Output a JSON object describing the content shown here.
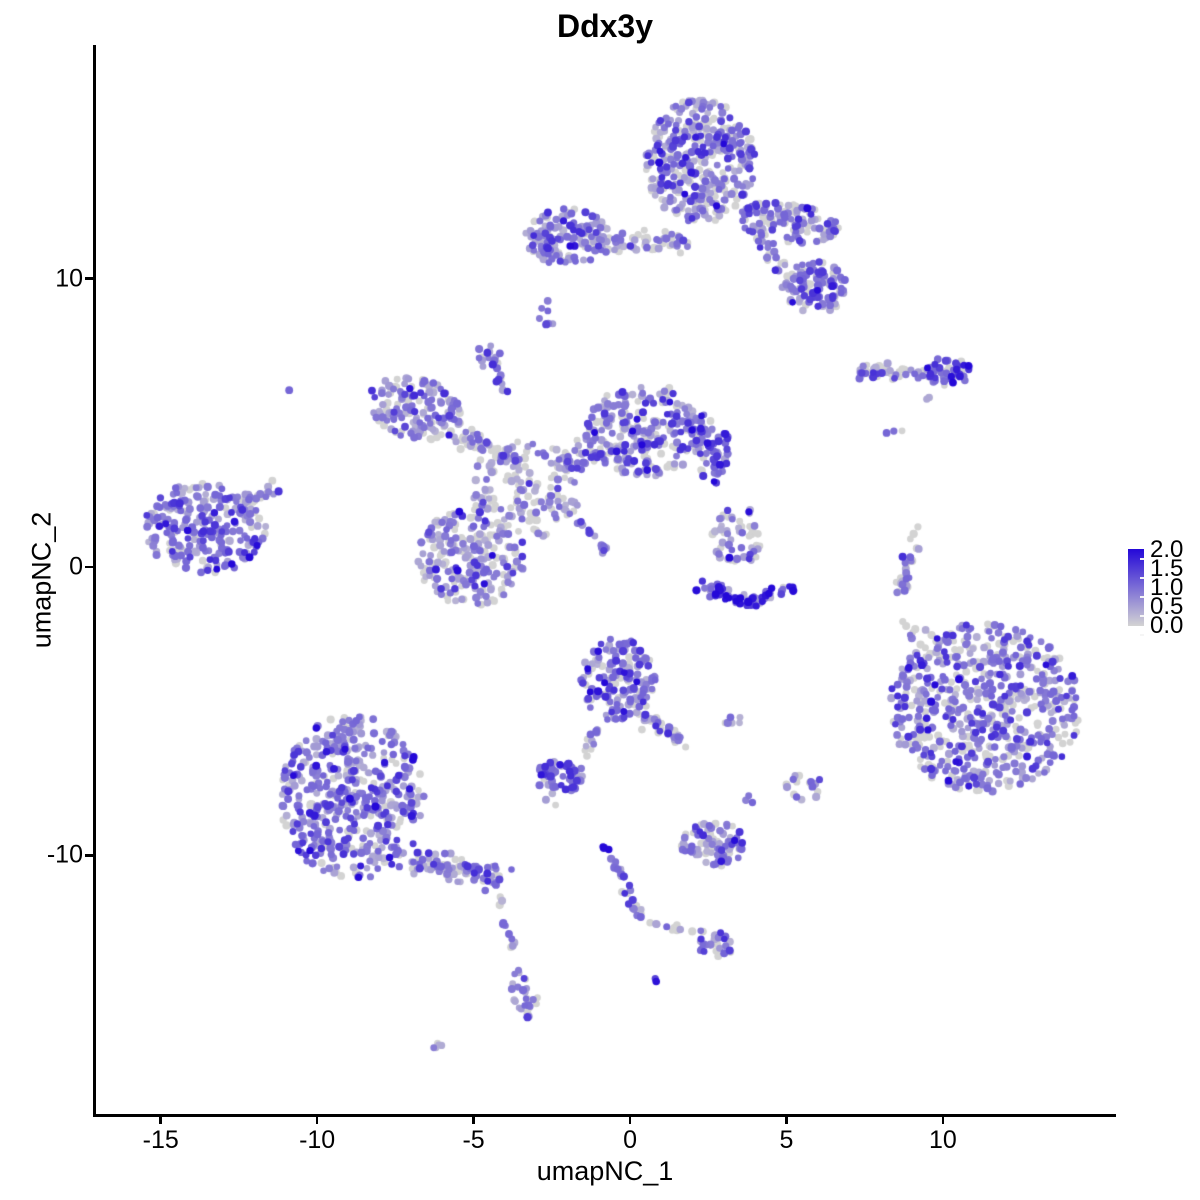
{
  "title": "Ddx3y",
  "chart_data": {
    "type": "scatter",
    "title": "Ddx3y",
    "subtitle": "",
    "xlabel": "umapNC_1",
    "ylabel": "umapNC_2",
    "xlim": [
      -17.1,
      15.5
    ],
    "ylim": [
      -19.0,
      18.1
    ],
    "x_ticks": [
      -15,
      -10,
      -5,
      0,
      5,
      10
    ],
    "y_ticks": [
      10,
      0,
      -10
    ],
    "grid": false,
    "point_radius_px": 3.6,
    "legend": {
      "position": "right",
      "labels": [
        "2.0",
        "1.5",
        "1.0",
        "0.5",
        "0.0"
      ],
      "value_range": [
        0,
        2
      ],
      "color_low": "#d3d3d3",
      "color_high": "#2408d8"
    },
    "value_bins": [
      0,
      0.45,
      0.95,
      1.5,
      1.95
    ],
    "clusters": [
      {
        "name": "top-main",
        "shape": "ellipse",
        "cx": 2.24,
        "cy": 14.08,
        "rx": 1.76,
        "ry": 2.15,
        "rot": 0,
        "n": 400,
        "mix": [
          0.3,
          0.27,
          0.3,
          0.1,
          0.03
        ]
      },
      {
        "name": "top-arm-right",
        "shape": "ellipse",
        "cx": 5.02,
        "cy": 11.94,
        "rx": 1.66,
        "ry": 0.66,
        "rot": -8,
        "n": 120,
        "mix": [
          0.3,
          0.25,
          0.3,
          0.12,
          0.03
        ]
      },
      {
        "name": "top-right-blob",
        "shape": "ellipse",
        "cx": 5.91,
        "cy": 9.69,
        "rx": 1.0,
        "ry": 0.9,
        "rot": 0,
        "n": 100,
        "mix": [
          0.25,
          0.22,
          0.35,
          0.15,
          0.03
        ]
      },
      {
        "name": "top-strand",
        "shape": "strand",
        "x1": 4.15,
        "y1": 11.59,
        "x2": 5.43,
        "y2": 9.31,
        "w": 0.3,
        "n": 30,
        "mix": [
          0.35,
          0.25,
          0.3,
          0.1,
          0
        ]
      },
      {
        "name": "topleft-cluster",
        "shape": "ellipse",
        "cx": -2.01,
        "cy": 11.42,
        "rx": 1.35,
        "ry": 1.0,
        "rot": 0,
        "n": 150,
        "mix": [
          0.2,
          0.25,
          0.38,
          0.14,
          0.03
        ]
      },
      {
        "name": "topleft-band",
        "shape": "strand",
        "x1": -0.73,
        "y1": 11.21,
        "x2": 1.85,
        "y2": 11.25,
        "w": 0.4,
        "n": 55,
        "mix": [
          0.45,
          0.25,
          0.22,
          0.08,
          0
        ]
      },
      {
        "name": "small-two-dot-blob",
        "shape": "ellipse",
        "cx": -2.78,
        "cy": 8.72,
        "rx": 0.28,
        "ry": 0.45,
        "rot": 30,
        "n": 7,
        "mix": [
          0.1,
          0.2,
          0.5,
          0.2,
          0
        ]
      },
      {
        "name": "small-two-dot-single",
        "shape": "ellipse",
        "cx": -2.65,
        "cy": 9.24,
        "rx": 0.06,
        "ry": 0.06,
        "rot": 0,
        "n": 1,
        "mix": [
          0,
          0,
          1,
          0,
          0
        ]
      },
      {
        "name": "small-knob",
        "shape": "ellipse",
        "cx": -4.5,
        "cy": 7.3,
        "rx": 0.42,
        "ry": 0.42,
        "rot": 0,
        "n": 14,
        "mix": [
          0.15,
          0.2,
          0.45,
          0.2,
          0
        ]
      },
      {
        "name": "knob-strand",
        "shape": "strand",
        "x1": -4.28,
        "y1": 6.75,
        "x2": -3.87,
        "y2": 6.02,
        "w": 0.18,
        "n": 10,
        "mix": [
          0.2,
          0.3,
          0.4,
          0.1,
          0
        ]
      },
      {
        "name": "mid-left-arm",
        "shape": "ellipse",
        "cx": -6.87,
        "cy": 5.5,
        "rx": 1.55,
        "ry": 1.05,
        "rot": -18,
        "n": 150,
        "mix": [
          0.33,
          0.28,
          0.29,
          0.09,
          0.01
        ]
      },
      {
        "name": "mid-left-bridge",
        "shape": "strand",
        "x1": -5.5,
        "y1": 4.53,
        "x2": -3.42,
        "y2": 3.63,
        "w": 0.5,
        "n": 60,
        "mix": [
          0.45,
          0.27,
          0.22,
          0.06,
          0
        ]
      },
      {
        "name": "mid-central",
        "shape": "ellipse",
        "cx": -3.35,
        "cy": 2.66,
        "rx": 1.75,
        "ry": 1.7,
        "rot": 0,
        "n": 120,
        "mix": [
          0.45,
          0.28,
          0.22,
          0.05,
          0
        ]
      },
      {
        "name": "mid-right-lobe",
        "shape": "ellipse",
        "cx": 0.48,
        "cy": 4.74,
        "rx": 2.0,
        "ry": 1.6,
        "rot": 0,
        "n": 250,
        "mix": [
          0.28,
          0.27,
          0.31,
          0.11,
          0.03
        ]
      },
      {
        "name": "mid-right-edge",
        "shape": "ellipse",
        "cx": 2.65,
        "cy": 3.98,
        "rx": 0.6,
        "ry": 1.1,
        "rot": 0,
        "n": 55,
        "mix": [
          0.1,
          0.15,
          0.35,
          0.3,
          0.1
        ]
      },
      {
        "name": "mid-bridge",
        "shape": "strand",
        "x1": -2.24,
        "y1": 3.43,
        "x2": -0.58,
        "y2": 4.36,
        "w": 0.5,
        "n": 55,
        "mix": [
          0.4,
          0.28,
          0.25,
          0.07,
          0
        ]
      },
      {
        "name": "mid-lower-blob",
        "shape": "ellipse",
        "cx": -5.11,
        "cy": 0.35,
        "rx": 1.75,
        "ry": 1.7,
        "rot": 0,
        "n": 220,
        "mix": [
          0.3,
          0.3,
          0.29,
          0.09,
          0.02
        ]
      },
      {
        "name": "diag-streak",
        "shape": "strand",
        "x1": -2.62,
        "y1": 2.6,
        "x2": -0.73,
        "y2": 0.52,
        "w": 0.12,
        "n": 24,
        "mix": [
          0.1,
          0.35,
          0.45,
          0.1,
          0
        ]
      },
      {
        "name": "left-cluster",
        "shape": "ellipse",
        "cx": -13.58,
        "cy": 1.38,
        "rx": 1.95,
        "ry": 1.6,
        "rot": 0,
        "n": 250,
        "mix": [
          0.17,
          0.25,
          0.42,
          0.14,
          0.02
        ]
      },
      {
        "name": "left-cluster-arm",
        "shape": "strand",
        "x1": -12.36,
        "y1": 2.11,
        "x2": -11.47,
        "y2": 2.7,
        "w": 0.3,
        "n": 22,
        "mix": [
          0.2,
          0.3,
          0.4,
          0.1,
          0
        ]
      },
      {
        "name": "right-streak",
        "shape": "strand",
        "x1": 7.28,
        "y1": 6.78,
        "x2": 10.54,
        "y2": 6.71,
        "w": 0.3,
        "n": 60,
        "mix": [
          0.4,
          0.25,
          0.25,
          0.1,
          0
        ]
      },
      {
        "name": "right-streak-dense",
        "shape": "ellipse",
        "cx": 10.16,
        "cy": 6.78,
        "rx": 0.72,
        "ry": 0.5,
        "rot": 0,
        "n": 40,
        "mix": [
          0.1,
          0.15,
          0.3,
          0.3,
          0.15
        ]
      },
      {
        "name": "streak-tail",
        "shape": "strand",
        "x1": 9.84,
        "y1": 6.19,
        "x2": 9.52,
        "y2": 5.78,
        "w": 0.1,
        "n": 4,
        "mix": [
          0.3,
          0.3,
          0.4,
          0,
          0
        ]
      },
      {
        "name": "iso-dots-right",
        "shape": "ellipse",
        "cx": 8.53,
        "cy": 4.64,
        "rx": 0.45,
        "ry": 0.3,
        "rot": 0,
        "n": 3,
        "mix": [
          0.3,
          0,
          0.7,
          0,
          0
        ]
      },
      {
        "name": "right-vstrand",
        "shape": "strand",
        "x1": 9.11,
        "y1": 1.25,
        "x2": 8.59,
        "y2": -1.25,
        "w": 0.22,
        "n": 34,
        "mix": [
          0.45,
          0.2,
          0.25,
          0.1,
          0
        ]
      },
      {
        "name": "vstrand-dots",
        "shape": "ellipse",
        "cx": 8.72,
        "cy": -1.9,
        "rx": 0.15,
        "ry": 0.2,
        "rot": 0,
        "n": 2,
        "mix": [
          1,
          0,
          0,
          0,
          0
        ]
      },
      {
        "name": "u-cluster-top",
        "shape": "ellipse",
        "cx": 3.42,
        "cy": 1.07,
        "rx": 0.85,
        "ry": 1.05,
        "rot": 0,
        "n": 55,
        "mix": [
          0.4,
          0.25,
          0.25,
          0.08,
          0.02
        ]
      },
      {
        "name": "u-arc-left",
        "shape": "strand",
        "x1": 2.27,
        "y1": -0.59,
        "x2": 3.71,
        "y2": -1.28,
        "w": 0.3,
        "n": 35,
        "mix": [
          0.08,
          0.1,
          0.25,
          0.25,
          0.32
        ]
      },
      {
        "name": "u-arc-right",
        "shape": "strand",
        "x1": 3.71,
        "y1": -1.28,
        "x2": 5.02,
        "y2": -0.69,
        "w": 0.3,
        "n": 30,
        "mix": [
          0.08,
          0.12,
          0.3,
          0.25,
          0.25
        ]
      },
      {
        "name": "big-right-cluster",
        "shape": "ellipse",
        "cx": 11.34,
        "cy": -4.88,
        "rx": 3.05,
        "ry": 2.95,
        "rot": 0,
        "n": 620,
        "mix": [
          0.3,
          0.25,
          0.32,
          0.11,
          0.02
        ]
      },
      {
        "name": "big-right-top-dots",
        "shape": "ellipse",
        "cx": 9.52,
        "cy": -2.8,
        "rx": 0.7,
        "ry": 0.9,
        "rot": 0,
        "n": 12,
        "mix": [
          0.6,
          0.2,
          0.2,
          0,
          0
        ]
      },
      {
        "name": "bottomleft-main",
        "shape": "ellipse",
        "cx": -8.88,
        "cy": -7.99,
        "rx": 2.3,
        "ry": 2.85,
        "rot": 0,
        "n": 500,
        "mix": [
          0.18,
          0.27,
          0.4,
          0.12,
          0.03
        ]
      },
      {
        "name": "bottomleft-arm",
        "shape": "strand",
        "x1": -7.19,
        "y1": -10.07,
        "x2": -4.25,
        "y2": -10.83,
        "w": 0.55,
        "n": 100,
        "mix": [
          0.25,
          0.3,
          0.33,
          0.12,
          0
        ]
      },
      {
        "name": "tail-strand",
        "shape": "strand",
        "x1": -4.19,
        "y1": -11.42,
        "x2": -3.74,
        "y2": -13.25,
        "w": 0.15,
        "n": 12,
        "mix": [
          0.35,
          0.3,
          0.35,
          0,
          0
        ]
      },
      {
        "name": "tail-blob",
        "shape": "ellipse",
        "cx": -3.39,
        "cy": -14.81,
        "rx": 0.4,
        "ry": 0.85,
        "rot": 15,
        "n": 28,
        "mix": [
          0.2,
          0.3,
          0.4,
          0.1,
          0
        ]
      },
      {
        "name": "tail-dash",
        "shape": "ellipse",
        "cx": -6.04,
        "cy": -16.57,
        "rx": 0.35,
        "ry": 0.15,
        "rot": 20,
        "n": 5,
        "mix": [
          0.1,
          0.4,
          0.5,
          0,
          0
        ]
      },
      {
        "name": "midbottom-main",
        "shape": "ellipse",
        "cx": -0.38,
        "cy": -3.91,
        "rx": 1.2,
        "ry": 1.45,
        "rot": 0,
        "n": 160,
        "mix": [
          0.2,
          0.25,
          0.38,
          0.14,
          0.03
        ]
      },
      {
        "name": "midbottom-arm",
        "shape": "strand",
        "x1": 0.42,
        "y1": -5.19,
        "x2": 1.73,
        "y2": -6.12,
        "w": 0.28,
        "n": 35,
        "mix": [
          0.2,
          0.3,
          0.35,
          0.15,
          0
        ]
      },
      {
        "name": "midbottom-pair",
        "shape": "ellipse",
        "cx": 3.23,
        "cy": -5.29,
        "rx": 0.4,
        "ry": 0.18,
        "rot": 0,
        "n": 6,
        "mix": [
          0.15,
          0.25,
          0.5,
          0.1,
          0
        ]
      },
      {
        "name": "dense-knot",
        "shape": "ellipse",
        "cx": -2.24,
        "cy": -7.27,
        "rx": 0.8,
        "ry": 0.55,
        "rot": 0,
        "n": 65,
        "mix": [
          0.1,
          0.18,
          0.45,
          0.22,
          0.05
        ]
      },
      {
        "name": "knot-dots",
        "shape": "ellipse",
        "cx": -2.49,
        "cy": -8.1,
        "rx": 0.2,
        "ry": 0.25,
        "rot": 0,
        "n": 3,
        "mix": [
          0.3,
          0.3,
          0.4,
          0,
          0
        ]
      },
      {
        "name": "knot-connector",
        "shape": "strand",
        "x1": -1.6,
        "y1": -6.68,
        "x2": -0.93,
        "y2": -5.54,
        "w": 0.15,
        "n": 12,
        "mix": [
          0.4,
          0.3,
          0.3,
          0,
          0
        ]
      },
      {
        "name": "y-dark-dot",
        "shape": "ellipse",
        "cx": -0.7,
        "cy": -9.65,
        "rx": 0.18,
        "ry": 0.18,
        "rot": 0,
        "n": 4,
        "mix": [
          0,
          0,
          0.2,
          0.2,
          0.6
        ]
      },
      {
        "name": "y-strand",
        "shape": "strand",
        "x1": -0.54,
        "y1": -10.0,
        "x2": 0.29,
        "y2": -12.18,
        "w": 0.2,
        "n": 28,
        "mix": [
          0.25,
          0.25,
          0.35,
          0.15,
          0
        ]
      },
      {
        "name": "y-branch",
        "shape": "strand",
        "x1": 0.58,
        "y1": -12.42,
        "x2": 2.3,
        "y2": -12.66,
        "w": 0.15,
        "n": 12,
        "mix": [
          0.3,
          0.3,
          0.4,
          0,
          0
        ]
      },
      {
        "name": "y-end-blob",
        "shape": "ellipse",
        "cx": 2.75,
        "cy": -13.11,
        "rx": 0.55,
        "ry": 0.45,
        "rot": 0,
        "n": 30,
        "mix": [
          0.2,
          0.2,
          0.4,
          0.18,
          0.02
        ]
      },
      {
        "name": "iso-deep-dot",
        "shape": "ellipse",
        "cx": 0.86,
        "cy": -14.36,
        "rx": 0.1,
        "ry": 0.12,
        "rot": 0,
        "n": 2,
        "mix": [
          0,
          0,
          0,
          0.3,
          0.7
        ]
      },
      {
        "name": "small-south-blob",
        "shape": "ellipse",
        "cx": 2.68,
        "cy": -9.62,
        "rx": 1.05,
        "ry": 0.78,
        "rot": 0,
        "n": 90,
        "mix": [
          0.3,
          0.28,
          0.32,
          0.09,
          0.01
        ]
      },
      {
        "name": "south-dots",
        "shape": "ellipse",
        "cx": 3.8,
        "cy": -7.92,
        "rx": 0.2,
        "ry": 0.3,
        "rot": 0,
        "n": 3,
        "mix": [
          0.2,
          0.3,
          0.5,
          0,
          0
        ]
      },
      {
        "name": "small-se-cluster",
        "shape": "ellipse",
        "cx": 5.59,
        "cy": -7.58,
        "rx": 0.6,
        "ry": 0.5,
        "rot": 0,
        "n": 16,
        "mix": [
          0.35,
          0.25,
          0.3,
          0.1,
          0
        ]
      },
      {
        "name": "iso-dot-left",
        "shape": "ellipse",
        "cx": -10.86,
        "cy": 6.12,
        "rx": 0.07,
        "ry": 0.07,
        "rot": 0,
        "n": 1,
        "mix": [
          0,
          0,
          1,
          0,
          0
        ]
      }
    ]
  }
}
